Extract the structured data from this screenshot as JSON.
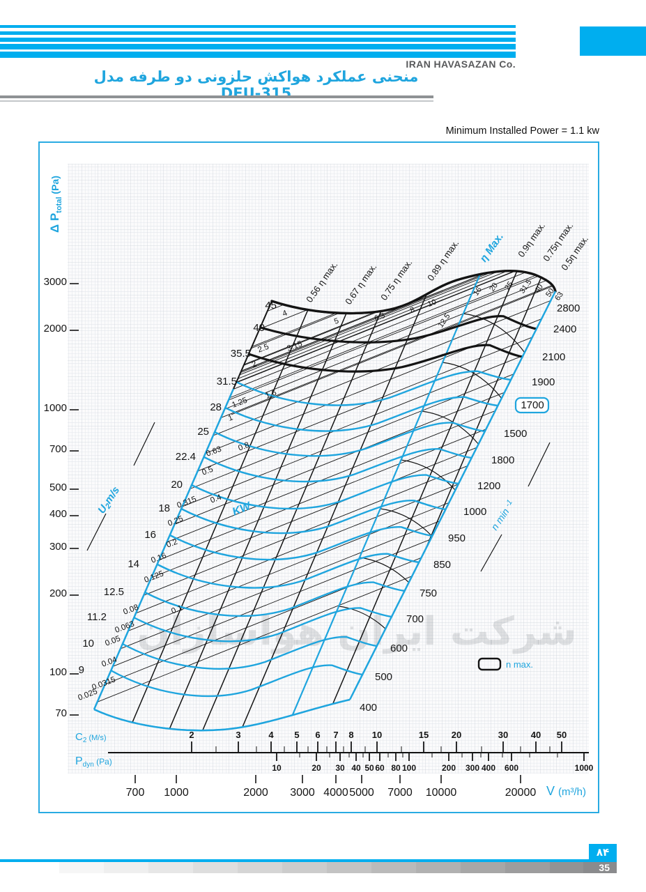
{
  "colors": {
    "accent": "#00AEEF",
    "chart_blue": "#1FA5DE",
    "gray_text": "#58595B",
    "black": "#141414",
    "watermark": "rgba(90,95,102,0.17)"
  },
  "header": {
    "company": "IRAN HAVASAZAN Co.",
    "title": "منحنی عملکرد هواکش حلزونی دو طرفه مدل DFU-315",
    "note": "Minimum Installed Power = 1.1 kw"
  },
  "watermark": "شرکت ایران هواسازان",
  "footer": {
    "page_fa": "۸۴",
    "page_num": "35"
  },
  "chart_data": {
    "type": "fan-performance-curves",
    "title": "Performance curves of double-inlet centrifugal fan model DFU-315",
    "y_axis": {
      "sym": "Δ P",
      "sub": "total",
      "unit": "(Pa)",
      "scale": "log",
      "ticks": [
        "3000",
        "2000",
        "1000",
        "700",
        "500",
        "400",
        "300",
        "200",
        "100",
        "70"
      ]
    },
    "c2_axis": {
      "sym": "C",
      "sub": "2",
      "unit": "(M/s)",
      "scale": "log",
      "ticks": [
        "2",
        "3",
        "4",
        "5",
        "6",
        "7",
        "8",
        "10",
        "15",
        "20",
        "30",
        "40",
        "50"
      ]
    },
    "pdyn_axis": {
      "sym": "P",
      "sub": "dyn",
      "unit": "(Pa)",
      "scale": "log",
      "ticks": [
        "10",
        "20",
        "30",
        "40",
        "50",
        "60",
        "80",
        "100",
        "200",
        "300",
        "400",
        "600",
        "1000"
      ]
    },
    "v_axis": {
      "sym": "V",
      "unit": "(m³/h)",
      "scale": "log",
      "ticks": [
        "700",
        "1000",
        "2000",
        "3000",
        "4000",
        "5000",
        "7000",
        "10000",
        "20000"
      ]
    },
    "u2_axis": {
      "sym": "U",
      "sub": "2",
      "unit": "m/s",
      "values": [
        "45",
        "40",
        "35.5",
        "31.5",
        "28",
        "25",
        "22.4",
        "20",
        "18",
        "16",
        "14",
        "12.5",
        "11.2",
        "10",
        "9"
      ]
    },
    "rpm": {
      "label_main": "n min",
      "label_sup": "-1",
      "legend_max": "n max.",
      "boxed": "1700",
      "black_curves": [
        "2800",
        "2400",
        "2100"
      ],
      "blue_curves": [
        "1900",
        "1700",
        "1500",
        "1800",
        "1200",
        "1000",
        "950",
        "850",
        "750",
        "700",
        "600",
        "500",
        "400"
      ]
    },
    "power_kw": {
      "label": "KW",
      "left_values": [
        "0.025",
        "0.0315",
        "0.04",
        "0.05",
        "0.063",
        "0.08",
        "0.1",
        "0.125",
        "0.16",
        "0.2",
        "0.25",
        "0.315",
        "0.4",
        "0.5",
        "0.63",
        "0.8",
        "1",
        "1.25",
        "1.6",
        "2",
        "2.5",
        "3.15",
        "4"
      ],
      "top_values": [
        "5",
        "6.3",
        "8",
        "10",
        "12.5",
        "16",
        "20",
        "25",
        "31.5",
        "40",
        "50",
        "63"
      ]
    },
    "efficiency": {
      "labels": [
        "0.56 η max.",
        "0.67 η max.",
        "0.75 η max.",
        "0.89 η max.",
        "η Max.",
        "0.9η max.",
        "0.75η max.",
        "0.5η max."
      ],
      "max_label_index": 4
    }
  }
}
